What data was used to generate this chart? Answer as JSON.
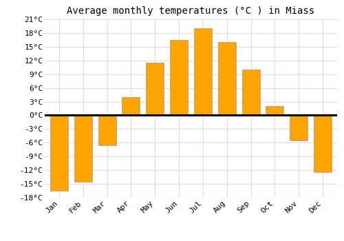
{
  "title": "Average monthly temperatures (°C ) in Miass",
  "months": [
    "Jan",
    "Feb",
    "Mar",
    "Apr",
    "May",
    "Jun",
    "Jul",
    "Aug",
    "Sep",
    "Oct",
    "Nov",
    "Dec"
  ],
  "values": [
    -16.5,
    -14.5,
    -6.5,
    4.0,
    11.5,
    16.5,
    19.0,
    16.0,
    10.0,
    2.0,
    -5.5,
    -12.5
  ],
  "bar_color_top": "#FFB52E",
  "bar_color_bottom": "#FFA500",
  "bar_edge_color": "#999999",
  "background_color": "#ffffff",
  "grid_color": "#dddddd",
  "ylim": [
    -18,
    21
  ],
  "yticks": [
    -18,
    -15,
    -12,
    -9,
    -6,
    -3,
    0,
    3,
    6,
    9,
    12,
    15,
    18,
    21
  ],
  "zero_line_color": "#000000",
  "title_fontsize": 10,
  "tick_fontsize": 8
}
